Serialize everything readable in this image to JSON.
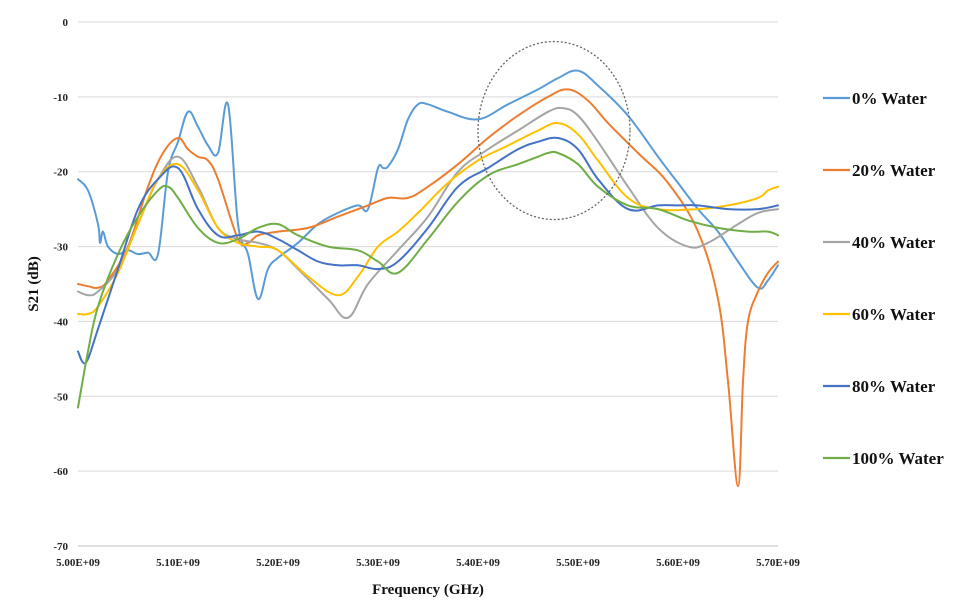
{
  "chart_data": {
    "type": "line",
    "title": "",
    "xlabel": "Frequency (GHz)",
    "ylabel": "S21 (dB)",
    "xlim": [
      5000000000.0,
      5700000000.0
    ],
    "ylim": [
      -70,
      0
    ],
    "x_ticks": [
      5000000000.0,
      5100000000.0,
      5200000000.0,
      5300000000.0,
      5400000000.0,
      5500000000.0,
      5600000000.0,
      5700000000.0
    ],
    "x_tick_labels": [
      "5.00E+09",
      "5.10E+09",
      "5.20E+09",
      "5.30E+09",
      "5.40E+09",
      "5.50E+09",
      "5.60E+09",
      "5.70E+09"
    ],
    "y_ticks": [
      0,
      -10,
      -20,
      -30,
      -40,
      -50,
      -60,
      -70
    ],
    "y_tick_labels": [
      "0",
      "-10",
      "-20",
      "-30",
      "-40",
      "-50",
      "-60",
      "-70"
    ],
    "grid": "horizontal",
    "legend_position": "right",
    "annotation": "dotted ellipse around peaks near 5.48E+09",
    "series": [
      {
        "name": "0% Water",
        "color": "#5b9bd5",
        "x": [
          5000000000.0,
          5010000000.0,
          5020000000.0,
          5022000000.0,
          5025000000.0,
          5030000000.0,
          5040000000.0,
          5050000000.0,
          5060000000.0,
          5070000000.0,
          5080000000.0,
          5090000000.0,
          5100000000.0,
          5110000000.0,
          5120000000.0,
          5130000000.0,
          5140000000.0,
          5150000000.0,
          5160000000.0,
          5170000000.0,
          5180000000.0,
          5190000000.0,
          5200000000.0,
          5220000000.0,
          5240000000.0,
          5260000000.0,
          5280000000.0,
          5290000000.0,
          5300000000.0,
          5305000000.0,
          5310000000.0,
          5320000000.0,
          5330000000.0,
          5340000000.0,
          5350000000.0,
          5370000000.0,
          5400000000.0,
          5430000000.0,
          5460000000.0,
          5480000000.0,
          5500000000.0,
          5520000000.0,
          5550000000.0,
          5580000000.0,
          5600000000.0,
          5620000000.0,
          5640000000.0,
          5660000000.0,
          5680000000.0,
          5690000000.0,
          5700000000.0
        ],
        "values": [
          -21,
          -22.5,
          -27,
          -29.5,
          -28,
          -30,
          -31,
          -30.5,
          -31,
          -30.8,
          -31,
          -20,
          -16,
          -12,
          -14,
          -16.5,
          -17.5,
          -11,
          -27,
          -31,
          -37,
          -33,
          -31.5,
          -29.5,
          -27,
          -25.5,
          -24.5,
          -25,
          -19.5,
          -19.5,
          -19.3,
          -17,
          -13,
          -11,
          -11,
          -12,
          -13,
          -11,
          -9,
          -7.5,
          -6.5,
          -8.5,
          -12.5,
          -18,
          -21.5,
          -25,
          -28,
          -32,
          -35.5,
          -34.5,
          -32.5
        ]
      },
      {
        "name": "20% Water",
        "color": "#ed7d31",
        "x": [
          5000000000.0,
          5010000000.0,
          5020000000.0,
          5030000000.0,
          5050000000.0,
          5070000000.0,
          5085000000.0,
          5100000000.0,
          5110000000.0,
          5120000000.0,
          5130000000.0,
          5140000000.0,
          5160000000.0,
          5170000000.0,
          5180000000.0,
          5200000000.0,
          5230000000.0,
          5260000000.0,
          5290000000.0,
          5310000000.0,
          5330000000.0,
          5350000000.0,
          5380000000.0,
          5410000000.0,
          5440000000.0,
          5470000000.0,
          5490000000.0,
          5510000000.0,
          5530000000.0,
          5560000000.0,
          5590000000.0,
          5620000000.0,
          5640000000.0,
          5650000000.0,
          5660000000.0,
          5665000000.0,
          5670000000.0,
          5680000000.0,
          5690000000.0,
          5700000000.0
        ],
        "values": [
          -35,
          -35.3,
          -35.5,
          -34.5,
          -30,
          -22,
          -17.5,
          -15.5,
          -17,
          -18,
          -18.5,
          -21,
          -29,
          -29.5,
          -28.5,
          -28,
          -27.5,
          -26,
          -24.5,
          -23.5,
          -23.5,
          -22,
          -19,
          -15.5,
          -12.5,
          -10,
          -9,
          -10.5,
          -13.5,
          -17.5,
          -21.5,
          -28,
          -37,
          -48,
          -62,
          -48,
          -40,
          -36,
          -33.5,
          -32
        ]
      },
      {
        "name": "40% Water",
        "color": "#a5a5a5",
        "x": [
          5000000000.0,
          5010000000.0,
          5020000000.0,
          5040000000.0,
          5060000000.0,
          5080000000.0,
          5100000000.0,
          5120000000.0,
          5140000000.0,
          5160000000.0,
          5180000000.0,
          5200000000.0,
          5220000000.0,
          5250000000.0,
          5270000000.0,
          5290000000.0,
          5320000000.0,
          5350000000.0,
          5380000000.0,
          5410000000.0,
          5440000000.0,
          5470000000.0,
          5485000000.0,
          5500000000.0,
          5520000000.0,
          5550000000.0,
          5580000000.0,
          5610000000.0,
          5630000000.0,
          5660000000.0,
          5680000000.0,
          5700000000.0
        ],
        "values": [
          -36,
          -36.5,
          -36,
          -33,
          -27,
          -21,
          -18,
          -22,
          -27.5,
          -29,
          -29.5,
          -30.5,
          -33,
          -37,
          -39.5,
          -35,
          -30.5,
          -26,
          -20,
          -17,
          -14.5,
          -12,
          -11.5,
          -12.5,
          -16,
          -22,
          -27.5,
          -30,
          -29.5,
          -27,
          -25.5,
          -25
        ]
      },
      {
        "name": "60% Water",
        "color": "#ffc000",
        "x": [
          5000000000.0,
          5010000000.0,
          5020000000.0,
          5040000000.0,
          5060000000.0,
          5080000000.0,
          5100000000.0,
          5120000000.0,
          5140000000.0,
          5160000000.0,
          5180000000.0,
          5200000000.0,
          5230000000.0,
          5260000000.0,
          5280000000.0,
          5300000000.0,
          5320000000.0,
          5340000000.0,
          5370000000.0,
          5400000000.0,
          5430000000.0,
          5460000000.0,
          5480000000.0,
          5500000000.0,
          5520000000.0,
          5550000000.0,
          5580000000.0,
          5620000000.0,
          5650000000.0,
          5680000000.0,
          5690000000.0,
          5700000000.0
        ],
        "values": [
          -39,
          -39,
          -38,
          -33.5,
          -27,
          -21,
          -19,
          -22.5,
          -27.5,
          -29.5,
          -30,
          -30.5,
          -34,
          -36.5,
          -34,
          -30,
          -28,
          -25.5,
          -21.5,
          -18.5,
          -16.5,
          -14.5,
          -13.5,
          -15,
          -18.5,
          -23.5,
          -25,
          -25,
          -24.5,
          -23.5,
          -22.5,
          -22
        ]
      },
      {
        "name": "80% Water",
        "color": "#4472c4",
        "x": [
          5000000000.0,
          5005000000.0,
          5010000000.0,
          5020000000.0,
          5040000000.0,
          5060000000.0,
          5080000000.0,
          5100000000.0,
          5120000000.0,
          5140000000.0,
          5160000000.0,
          5180000000.0,
          5200000000.0,
          5220000000.0,
          5240000000.0,
          5260000000.0,
          5280000000.0,
          5300000000.0,
          5320000000.0,
          5350000000.0,
          5380000000.0,
          5410000000.0,
          5440000000.0,
          5460000000.0,
          5480000000.0,
          5500000000.0,
          5520000000.0,
          5550000000.0,
          5580000000.0,
          5600000000.0,
          5620000000.0,
          5650000000.0,
          5680000000.0,
          5700000000.0
        ],
        "values": [
          -44,
          -45.5,
          -45,
          -41,
          -33,
          -25,
          -21,
          -19.5,
          -25,
          -28.5,
          -28.5,
          -28,
          -29,
          -30.5,
          -32,
          -32.5,
          -32.5,
          -33,
          -32,
          -27.5,
          -22,
          -19.5,
          -17,
          -16,
          -15.5,
          -17,
          -21,
          -25,
          -24.5,
          -24.5,
          -24.5,
          -25,
          -25,
          -24.5
        ]
      },
      {
        "name": "100% Water",
        "color": "#70ad47",
        "x": [
          5000000000.0,
          5010000000.0,
          5020000000.0,
          5040000000.0,
          5060000000.0,
          5080000000.0,
          5090000000.0,
          5100000000.0,
          5120000000.0,
          5140000000.0,
          5160000000.0,
          5180000000.0,
          5200000000.0,
          5220000000.0,
          5250000000.0,
          5280000000.0,
          5300000000.0,
          5320000000.0,
          5350000000.0,
          5380000000.0,
          5410000000.0,
          5440000000.0,
          5460000000.0,
          5470000000.0,
          5480000000.0,
          5500000000.0,
          5520000000.0,
          5550000000.0,
          5580000000.0,
          5610000000.0,
          5640000000.0,
          5670000000.0,
          5690000000.0,
          5700000000.0
        ],
        "values": [
          -51.5,
          -44,
          -38,
          -31,
          -26,
          -22.5,
          -22,
          -23.5,
          -27.5,
          -29.5,
          -29,
          -27.5,
          -27,
          -28.5,
          -30,
          -30.5,
          -32,
          -33.5,
          -29,
          -24,
          -20.5,
          -19,
          -18,
          -17.5,
          -17.5,
          -19,
          -22,
          -24.5,
          -25,
          -26.5,
          -27.5,
          -28,
          -28,
          -28.5
        ]
      }
    ]
  }
}
